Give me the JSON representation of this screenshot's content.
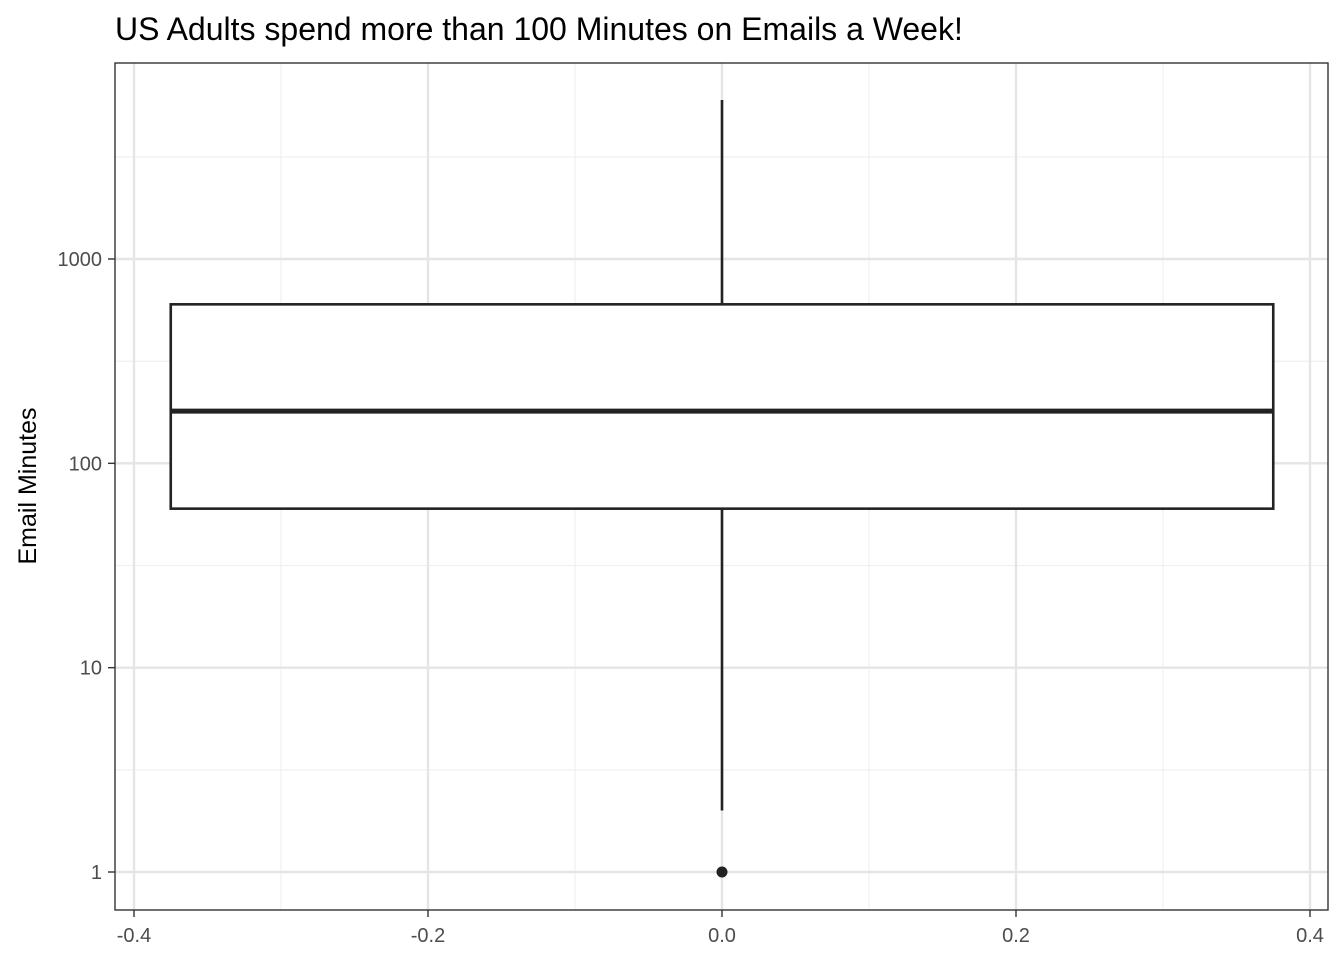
{
  "chart_data": {
    "type": "box",
    "title": "US Adults spend more than 100 Minutes on Emails a Week!",
    "xlabel": "",
    "ylabel": "Email Minutes",
    "y_scale": "log10",
    "xlim": [
      -0.4,
      0.4
    ],
    "ylim": [
      0.8,
      8000
    ],
    "x_ticks": [
      {
        "value": -0.4,
        "label": "-0.4"
      },
      {
        "value": -0.2,
        "label": "-0.2"
      },
      {
        "value": 0.0,
        "label": "0.0"
      },
      {
        "value": 0.2,
        "label": "0.2"
      },
      {
        "value": 0.4,
        "label": "0.4"
      }
    ],
    "y_ticks": [
      {
        "value": 1,
        "label": "1"
      },
      {
        "value": 10,
        "label": "10"
      },
      {
        "value": 100,
        "label": "100"
      },
      {
        "value": 1000,
        "label": "1000"
      }
    ],
    "x_minor": [
      -0.3,
      -0.1,
      0.1,
      0.3
    ],
    "y_minor": [
      3.16,
      31.6,
      316,
      3162
    ],
    "grid": true,
    "box": {
      "x": 0.0,
      "x_min": -0.375,
      "x_max": 0.375,
      "whisker_low": 2,
      "q1": 60,
      "median": 180,
      "q3": 600,
      "whisker_high": 6000,
      "outliers": [
        1
      ]
    },
    "colors": {
      "box_line": "#222222",
      "box_fill": "#ffffff",
      "grid_major": "#e5e5e5",
      "grid_minor": "#efefef",
      "panel_border": "#333333",
      "tick_label": "#4d4d4d"
    }
  }
}
